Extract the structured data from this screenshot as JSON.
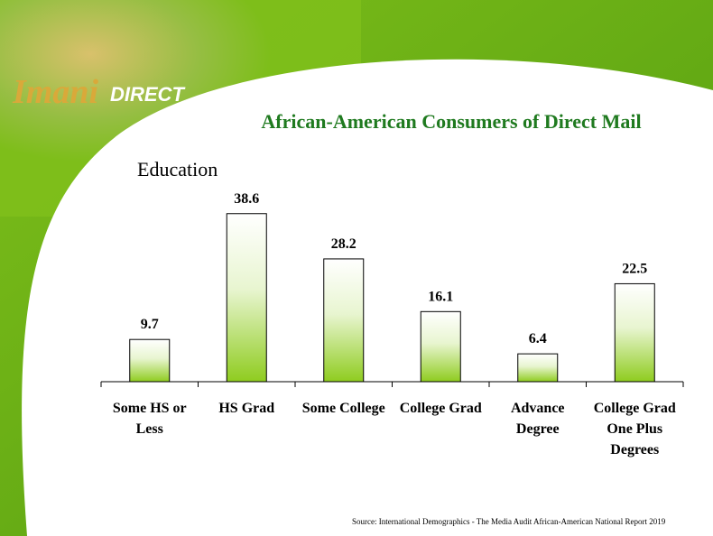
{
  "logo": {
    "name": "Imani",
    "tagline": "DIRECT"
  },
  "chart_data": {
    "type": "bar",
    "title": "African-American Consumers of Direct Mail",
    "subtitle": "Education",
    "categories": [
      "Some HS or Less",
      "HS Grad",
      "Some College",
      "College Grad",
      "Advance Degree",
      "College Grad One Plus Degrees"
    ],
    "values": [
      9.7,
      38.6,
      28.2,
      16.1,
      6.4,
      22.5
    ],
    "color": "#8fcc1f",
    "ylim": [
      0,
      40
    ],
    "source": "Source:  International Demographics - The Media Audit African-American National Report 2019"
  }
}
